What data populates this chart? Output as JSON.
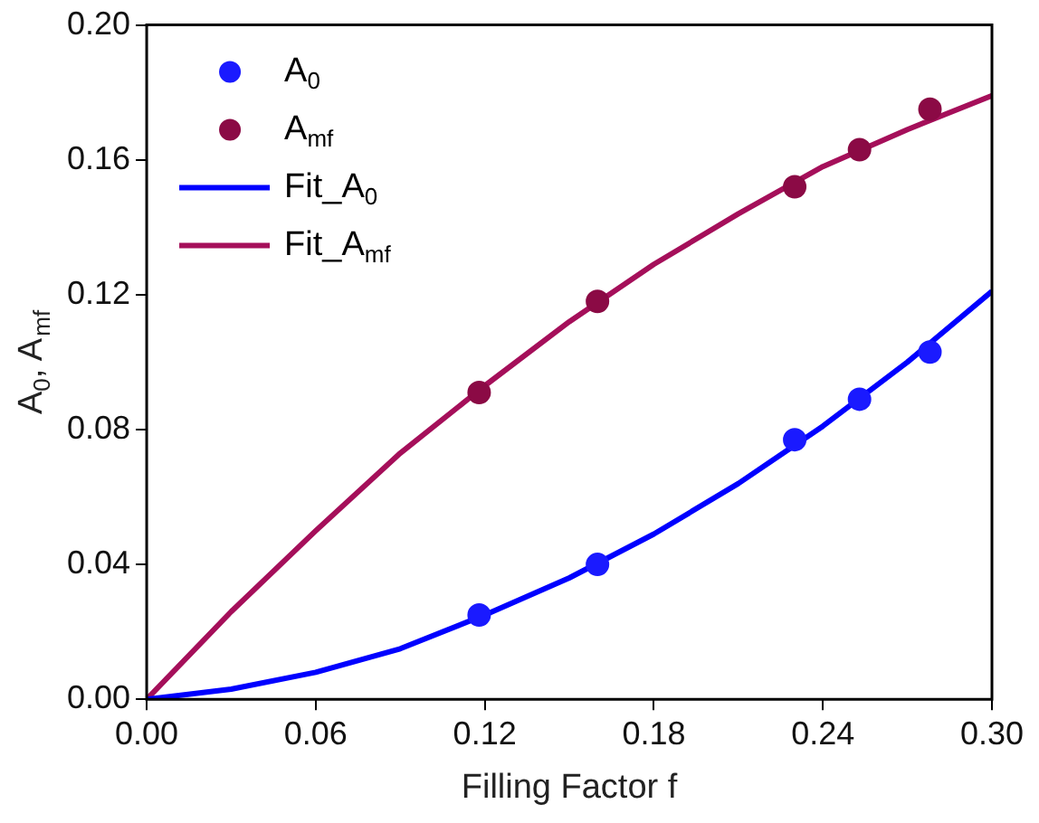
{
  "chart_data": {
    "type": "scatter",
    "xlabel": "Filling Factor f",
    "ylabel": "A$_{0}$, A$_{mf}$",
    "xlim": [
      0,
      0.3
    ],
    "ylim": [
      0,
      0.2
    ],
    "xticks": [
      {
        "value": 0,
        "label": "0.00"
      },
      {
        "value": 0.06,
        "label": "0.06"
      },
      {
        "value": 0.12,
        "label": "0.12"
      },
      {
        "value": 0.18,
        "label": "0.18"
      },
      {
        "value": 0.24,
        "label": "0.24"
      },
      {
        "value": 0.3,
        "label": "0.30"
      }
    ],
    "yticks": [
      {
        "value": 0,
        "label": "0.00"
      },
      {
        "value": 0.04,
        "label": "0.04"
      },
      {
        "value": 0.08,
        "label": "0.08"
      },
      {
        "value": 0.12,
        "label": "0.12"
      },
      {
        "value": 0.16,
        "label": "0.16"
      },
      {
        "value": 0.2,
        "label": "0.20"
      }
    ],
    "legend": "top left",
    "marker": "circle",
    "series": [
      {
        "name": "A$_{0}$",
        "color": "#1a1aff",
        "x": [
          0.118,
          0.16,
          0.23,
          0.253,
          0.278
        ],
        "values": [
          0.025,
          0.04,
          0.077,
          0.089,
          0.103
        ]
      },
      {
        "name": "A$_{mf}$",
        "color": "#8b0a45",
        "x": [
          0.118,
          0.16,
          0.23,
          0.253,
          0.278
        ],
        "values": [
          0.091,
          0.118,
          0.152,
          0.163,
          0.175
        ]
      },
      {
        "name": "Fit_A$_{0}$",
        "type": "line",
        "marker": "none",
        "line_style": "solid",
        "color": "#0000ff",
        "x": [
          0,
          0.03,
          0.06,
          0.09,
          0.12,
          0.15,
          0.18,
          0.21,
          0.24,
          0.27,
          0.3
        ],
        "values": [
          0,
          0.003,
          0.008,
          0.015,
          0.025,
          0.036,
          0.049,
          0.064,
          0.081,
          0.1,
          0.121
        ]
      },
      {
        "name": "Fit_A$_{mf}$",
        "type": "line",
        "marker": "none",
        "line_style": "solid",
        "color": "#a50f5a",
        "x": [
          0,
          0.03,
          0.06,
          0.09,
          0.12,
          0.15,
          0.18,
          0.21,
          0.24,
          0.27,
          0.3
        ],
        "values": [
          0,
          0.026,
          0.05,
          0.073,
          0.093,
          0.112,
          0.129,
          0.144,
          0.158,
          0.169,
          0.179
        ]
      }
    ]
  }
}
